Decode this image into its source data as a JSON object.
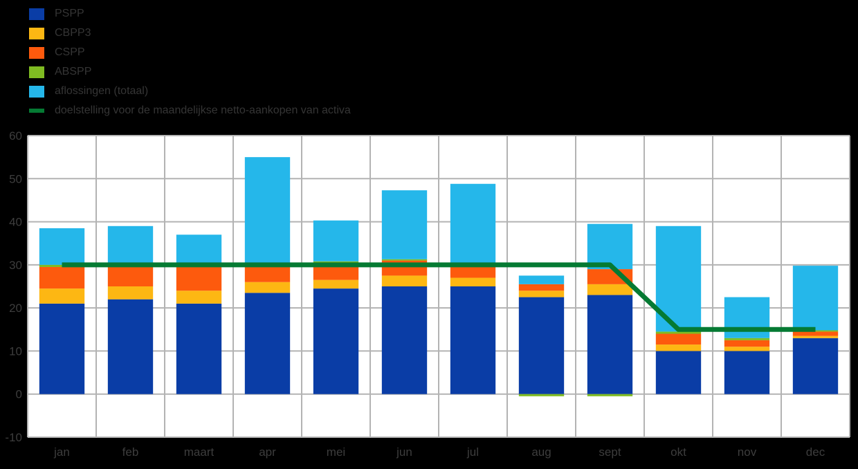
{
  "chart_data": {
    "type": "bar",
    "stacked": true,
    "title": "",
    "xlabel": "",
    "ylabel": "",
    "ylim": [
      -10,
      60
    ],
    "ytick_step": 10,
    "grid": true,
    "legend_position": "top-left",
    "categories": [
      "jan",
      "feb",
      "maart",
      "apr",
      "mei",
      "jun",
      "jul",
      "aug",
      "sept",
      "okt",
      "nov",
      "dec"
    ],
    "series": [
      {
        "name": "PSPP",
        "color": "#0a3da6",
        "values": [
          21,
          22,
          21,
          23.5,
          24.5,
          25,
          25,
          22.5,
          23,
          10,
          10,
          13
        ]
      },
      {
        "name": "CBPP3",
        "color": "#fdb713",
        "values": [
          3.5,
          3,
          3,
          2.5,
          2,
          2.5,
          2,
          1.5,
          2.5,
          1.5,
          1,
          0.5
        ]
      },
      {
        "name": "CSPP",
        "color": "#fd5a0d",
        "values": [
          5,
          4.5,
          5.5,
          3.5,
          4,
          3.5,
          2.5,
          1.5,
          3.5,
          2.5,
          1.5,
          1
        ]
      },
      {
        "name": "ABSPP",
        "color": "#7fbb22",
        "values": [
          0.5,
          0.5,
          1,
          0.5,
          0.3,
          0.3,
          0.3,
          -0.5,
          -0.5,
          0.5,
          0.5,
          0.3
        ]
      },
      {
        "name": "aflossingen (totaal)",
        "color": "#25b7ea",
        "values": [
          8.5,
          9,
          6.5,
          25,
          9.5,
          16,
          19,
          2,
          10.5,
          24.5,
          9.5,
          15
        ]
      }
    ],
    "line": {
      "name": "doelstelling voor de maandelijkse netto-aankopen van activa",
      "color": "#057a33",
      "values": [
        30,
        30,
        30,
        30,
        30,
        30,
        30,
        30,
        30,
        15,
        15,
        15
      ]
    },
    "colors": {
      "plot_background": "#ffffff",
      "page_background": "#000000",
      "gridline": "#b3b3b3",
      "axis_text": "#3d3d3d",
      "legend_text": "#353535"
    }
  }
}
